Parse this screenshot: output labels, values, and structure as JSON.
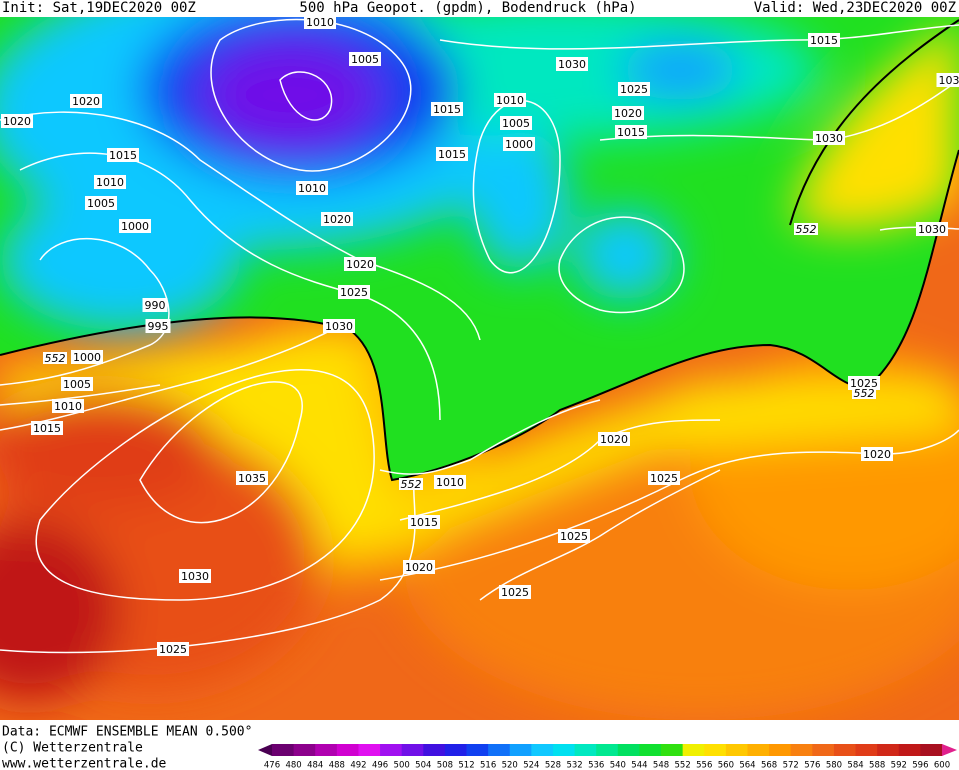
{
  "header": {
    "init": "Init: Sat,19DEC2020 00Z",
    "title": "500 hPa Geopot. (gpdm), Bodendruck (hPa)",
    "valid": "Valid: Wed,23DEC2020 00Z"
  },
  "footer": {
    "data": "Data: ECMWF ENSEMBLE MEAN 0.500°",
    "copyright": "(C) Wetterzentrale",
    "url": "www.wetterzentrale.de"
  },
  "isobar_labels": [
    "1010",
    "1005",
    "1020",
    "1020",
    "1015",
    "1010",
    "1005",
    "1000",
    "990",
    "995",
    "1000",
    "1005",
    "1010",
    "1015",
    "1010",
    "1020",
    "1020",
    "1025",
    "1030",
    "1015",
    "1015",
    "1030",
    "1010",
    "1005",
    "1000",
    "1025",
    "1020",
    "1015",
    "1015",
    "1030",
    "1030",
    "1025",
    "1020",
    "1020",
    "1025",
    "1010",
    "1015",
    "1020",
    "1025",
    "1025",
    "1035",
    "1030",
    "1025",
    "103"
  ],
  "height_labels": [
    "552",
    "552",
    "552",
    "552"
  ],
  "legend": {
    "labels": [
      "476",
      "480",
      "484",
      "488",
      "492",
      "496",
      "500",
      "504",
      "508",
      "512",
      "516",
      "520",
      "524",
      "528",
      "532",
      "536",
      "540",
      "544",
      "548",
      "552",
      "556",
      "560",
      "564",
      "568",
      "572",
      "576",
      "580",
      "584",
      "588",
      "592",
      "596",
      "600"
    ],
    "colors": [
      "#4a0052",
      "#6b0070",
      "#8c008c",
      "#b000b0",
      "#d000d0",
      "#e010f0",
      "#a010f0",
      "#7010e8",
      "#4010e0",
      "#2020e8",
      "#1040f0",
      "#1070f8",
      "#10a0ff",
      "#10c8ff",
      "#00e0f0",
      "#00e8c0",
      "#00e890",
      "#00e060",
      "#10e030",
      "#30e010",
      "#f0f000",
      "#ffe000",
      "#ffc800",
      "#ffb000",
      "#ff9800",
      "#f88010",
      "#f06818",
      "#e85018",
      "#e03c18",
      "#d02818",
      "#c01818",
      "#a81020",
      "#e0208c"
    ]
  }
}
